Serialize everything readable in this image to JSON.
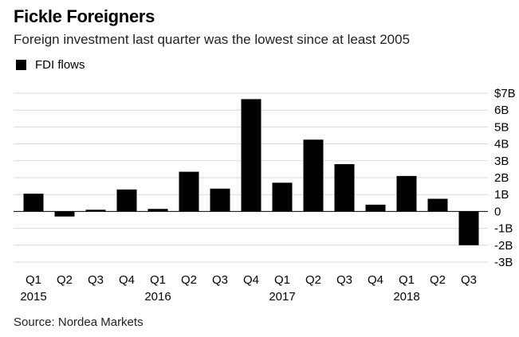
{
  "header": {
    "title": "Fickle Foreigners",
    "subtitle": "Foreign investment last quarter was the lowest since at least 2005"
  },
  "legend": {
    "label": "FDI flows",
    "color": "#000000"
  },
  "source": "Source: Nordea Markets",
  "chart_data": {
    "type": "bar",
    "categories": [
      "Q1 2015",
      "Q2 2015",
      "Q3 2015",
      "Q4 2015",
      "Q1 2016",
      "Q2 2016",
      "Q3 2016",
      "Q4 2016",
      "Q1 2017",
      "Q2 2017",
      "Q3 2017",
      "Q4 2017",
      "Q1 2018",
      "Q2 2018",
      "Q3 2018"
    ],
    "x_tick_labels": [
      "Q1",
      "Q2",
      "Q3",
      "Q4",
      "Q1",
      "Q2",
      "Q3",
      "Q4",
      "Q1",
      "Q2",
      "Q3",
      "Q4",
      "Q1",
      "Q2",
      "Q3"
    ],
    "x_group_labels": [
      {
        "label": "2015",
        "category_index": 0
      },
      {
        "label": "2016",
        "category_index": 4
      },
      {
        "label": "2017",
        "category_index": 8
      },
      {
        "label": "2018",
        "category_index": 12
      }
    ],
    "series": [
      {
        "name": "FDI flows",
        "values": [
          1.05,
          -0.3,
          0.1,
          1.3,
          0.15,
          2.35,
          1.35,
          6.65,
          1.7,
          4.25,
          2.8,
          0.4,
          2.1,
          0.75,
          -2.0
        ]
      }
    ],
    "y_ticks": [
      7,
      6,
      5,
      4,
      3,
      2,
      1,
      0,
      -1,
      -2,
      -3
    ],
    "y_tick_labels": [
      "$7B",
      "6B",
      "5B",
      "4B",
      "3B",
      "2B",
      "1B",
      "0",
      "-1B",
      "-2B",
      "-3B"
    ],
    "ylim": [
      -3,
      7
    ],
    "grid": true,
    "legend_position": "top-left",
    "y_axis_side": "right",
    "bar_color": "#000000"
  }
}
